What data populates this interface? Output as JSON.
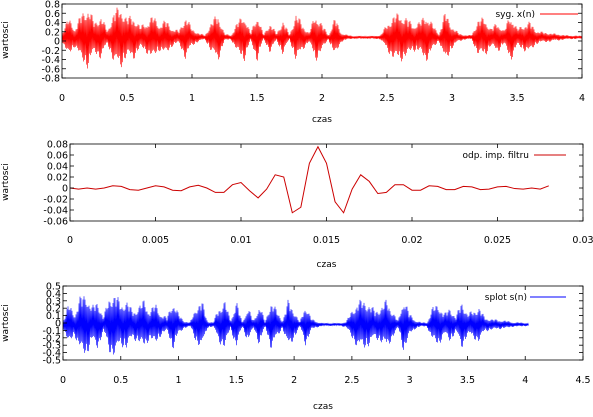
{
  "chart_data": [
    {
      "type": "line",
      "xlabel": "czas",
      "ylabel": "wartosci",
      "xlim": [
        0,
        4
      ],
      "ylim": [
        -0.8,
        0.8
      ],
      "xticks": [
        0,
        0.5,
        1,
        1.5,
        2,
        2.5,
        3,
        3.5,
        4
      ],
      "xtick_labels": [
        "0",
        "0.5",
        "1",
        "1.5",
        "2",
        "2.5",
        "3",
        "3.5",
        "4"
      ],
      "yticks": [
        -0.8,
        -0.6,
        -0.4,
        -0.2,
        0,
        0.2,
        0.4,
        0.6,
        0.8
      ],
      "ytick_labels": [
        "-0.8",
        "-0.6",
        "-0.4",
        "-0.2",
        "0",
        "0.2",
        "0.4",
        "0.6",
        "0.8"
      ],
      "legend_position": "top-right",
      "series": [
        {
          "name": "syg. x(n)",
          "color": "#ff0000",
          "kind": "oscillating-envelope",
          "baseline": 0.08,
          "x_end": 4.0,
          "envelope": {
            "x": [
              0.0,
              0.05,
              0.1,
              0.15,
              0.2,
              0.25,
              0.3,
              0.35,
              0.4,
              0.45,
              0.5,
              0.55,
              0.6,
              0.65,
              0.7,
              0.75,
              0.8,
              0.85,
              0.9,
              0.95,
              1.0,
              1.05,
              1.1,
              1.15,
              1.2,
              1.25,
              1.3,
              1.35,
              1.4,
              1.45,
              1.5,
              1.55,
              1.6,
              1.65,
              1.7,
              1.75,
              1.8,
              1.85,
              1.9,
              1.95,
              2.0,
              2.05,
              2.1,
              2.15,
              2.2,
              2.25,
              2.3,
              2.35,
              2.4,
              2.45,
              2.5,
              2.55,
              2.6,
              2.65,
              2.7,
              2.75,
              2.8,
              2.85,
              2.9,
              2.95,
              3.0,
              3.05,
              3.1,
              3.15,
              3.2,
              3.25,
              3.3,
              3.35,
              3.4,
              3.45,
              3.5,
              3.55,
              3.6,
              3.65,
              3.7,
              3.75,
              3.8,
              3.85,
              3.9,
              3.95,
              4.0
            ],
            "amplitude": [
              0.1,
              0.45,
              0.2,
              0.55,
              0.7,
              0.35,
              0.5,
              0.15,
              0.6,
              0.7,
              0.45,
              0.5,
              0.25,
              0.35,
              0.5,
              0.3,
              0.4,
              0.2,
              0.15,
              0.5,
              0.2,
              0.1,
              0.05,
              0.35,
              0.55,
              0.08,
              0.05,
              0.35,
              0.55,
              0.08,
              0.55,
              0.05,
              0.35,
              0.08,
              0.4,
              0.05,
              0.55,
              0.3,
              0.1,
              0.55,
              0.3,
              0.05,
              0.45,
              0.1,
              0.05,
              0.03,
              0.03,
              0.03,
              0.03,
              0.05,
              0.3,
              0.5,
              0.55,
              0.45,
              0.3,
              0.35,
              0.55,
              0.3,
              0.08,
              0.6,
              0.25,
              0.1,
              0.05,
              0.05,
              0.4,
              0.45,
              0.2,
              0.35,
              0.15,
              0.55,
              0.2,
              0.3,
              0.35,
              0.15,
              0.12,
              0.1,
              0.08,
              0.06,
              0.04,
              0.04,
              0.03
            ]
          }
        }
      ]
    },
    {
      "type": "line",
      "xlabel": "czas",
      "ylabel": "wartosci",
      "xlim": [
        0,
        0.03
      ],
      "ylim": [
        -0.06,
        0.08
      ],
      "xticks": [
        0,
        0.005,
        0.01,
        0.015,
        0.02,
        0.025,
        0.03
      ],
      "xtick_labels": [
        "0",
        "0.005",
        "0.01",
        "0.015",
        "0.02",
        "0.025",
        "0.03"
      ],
      "yticks": [
        -0.06,
        -0.04,
        -0.02,
        0,
        0.02,
        0.04,
        0.06,
        0.08
      ],
      "ytick_labels": [
        "-0.06",
        "-0.04",
        "-0.02",
        "0",
        "0.02",
        "0.04",
        "0.06",
        "0.08"
      ],
      "legend_position": "top-right",
      "series": [
        {
          "name": "odp. imp. filtru",
          "color": "#cc0000",
          "kind": "line",
          "x": [
            0.0,
            0.0005,
            0.001,
            0.0015,
            0.002,
            0.0025,
            0.003,
            0.0035,
            0.004,
            0.0045,
            0.005,
            0.0055,
            0.006,
            0.0065,
            0.007,
            0.0075,
            0.008,
            0.0085,
            0.009,
            0.0095,
            0.01,
            0.0105,
            0.011,
            0.0115,
            0.012,
            0.0125,
            0.013,
            0.0135,
            0.014,
            0.0145,
            0.015,
            0.0155,
            0.016,
            0.0165,
            0.017,
            0.0175,
            0.018,
            0.0185,
            0.019,
            0.0195,
            0.02,
            0.0205,
            0.021,
            0.0215,
            0.022,
            0.0225,
            0.023,
            0.0235,
            0.024,
            0.0245,
            0.025,
            0.0255,
            0.026,
            0.0265,
            0.027,
            0.0275,
            0.028
          ],
          "y": [
            0.0,
            -0.002,
            0.0,
            -0.002,
            0.0,
            0.004,
            0.003,
            -0.003,
            -0.004,
            0.0,
            0.004,
            0.002,
            -0.004,
            -0.005,
            0.002,
            0.005,
            0.0,
            -0.008,
            -0.008,
            0.006,
            0.01,
            -0.005,
            -0.018,
            -0.002,
            0.024,
            0.02,
            -0.045,
            -0.035,
            0.045,
            0.075,
            0.045,
            -0.025,
            -0.045,
            -0.002,
            0.024,
            0.012,
            -0.01,
            -0.008,
            0.006,
            0.006,
            -0.004,
            -0.004,
            0.004,
            0.003,
            -0.003,
            -0.003,
            0.003,
            0.002,
            -0.003,
            -0.002,
            0.002,
            0.003,
            -0.001,
            -0.002,
            0.0,
            -0.002,
            0.004
          ]
        }
      ]
    },
    {
      "type": "line",
      "xlabel": "czas",
      "ylabel": "wartosci",
      "xlim": [
        0,
        4.5
      ],
      "ylim": [
        -0.5,
        0.5
      ],
      "xticks": [
        0,
        0.5,
        1,
        1.5,
        2,
        2.5,
        3,
        3.5,
        4,
        4.5
      ],
      "xtick_labels": [
        "0",
        "0.5",
        "1",
        "1.5",
        "2",
        "2.5",
        "3",
        "3.5",
        "4",
        "4.5"
      ],
      "yticks": [
        -0.5,
        -0.4,
        -0.3,
        -0.2,
        -0.1,
        0,
        0.1,
        0.2,
        0.3,
        0.4,
        0.5
      ],
      "ytick_labels": [
        "-0.5",
        "-0.4",
        "-0.3",
        "-0.2",
        "-0.1",
        "0",
        "0.1",
        "0.2",
        "0.3",
        "0.4",
        "0.5"
      ],
      "legend_position": "top-right",
      "series": [
        {
          "name": "splot s(n)",
          "color": "#0000ff",
          "kind": "oscillating-envelope",
          "baseline": -0.02,
          "x_end": 4.03,
          "envelope": {
            "x": [
              0.0,
              0.05,
              0.1,
              0.15,
              0.2,
              0.25,
              0.3,
              0.35,
              0.4,
              0.45,
              0.5,
              0.55,
              0.6,
              0.65,
              0.7,
              0.75,
              0.8,
              0.85,
              0.9,
              0.95,
              1.0,
              1.05,
              1.1,
              1.15,
              1.2,
              1.25,
              1.3,
              1.35,
              1.4,
              1.45,
              1.5,
              1.55,
              1.6,
              1.65,
              1.7,
              1.75,
              1.8,
              1.85,
              1.9,
              1.95,
              2.0,
              2.05,
              2.1,
              2.15,
              2.2,
              2.25,
              2.3,
              2.35,
              2.4,
              2.45,
              2.5,
              2.55,
              2.6,
              2.65,
              2.7,
              2.75,
              2.8,
              2.85,
              2.9,
              2.95,
              3.0,
              3.05,
              3.1,
              3.15,
              3.2,
              3.25,
              3.3,
              3.35,
              3.4,
              3.45,
              3.5,
              3.55,
              3.6,
              3.65,
              3.7,
              3.75,
              3.8,
              3.85,
              3.9,
              3.95,
              4.03
            ],
            "amplitude": [
              0.05,
              0.3,
              0.15,
              0.4,
              0.45,
              0.25,
              0.35,
              0.1,
              0.4,
              0.45,
              0.3,
              0.35,
              0.2,
              0.25,
              0.35,
              0.2,
              0.3,
              0.15,
              0.1,
              0.35,
              0.15,
              0.05,
              0.03,
              0.25,
              0.35,
              0.05,
              0.03,
              0.25,
              0.35,
              0.05,
              0.35,
              0.03,
              0.25,
              0.05,
              0.3,
              0.03,
              0.35,
              0.2,
              0.05,
              0.35,
              0.2,
              0.03,
              0.3,
              0.08,
              0.04,
              0.02,
              0.02,
              0.02,
              0.02,
              0.04,
              0.2,
              0.33,
              0.35,
              0.3,
              0.2,
              0.25,
              0.35,
              0.2,
              0.05,
              0.4,
              0.15,
              0.06,
              0.03,
              0.03,
              0.25,
              0.3,
              0.15,
              0.25,
              0.1,
              0.35,
              0.15,
              0.2,
              0.25,
              0.1,
              0.08,
              0.07,
              0.06,
              0.05,
              0.03,
              0.03,
              0.02
            ]
          }
        }
      ]
    }
  ]
}
